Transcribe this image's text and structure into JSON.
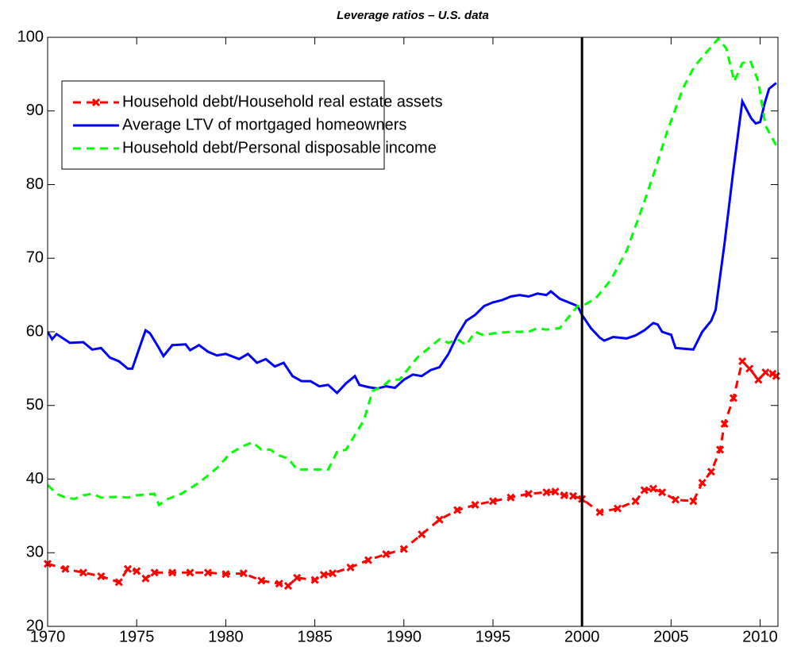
{
  "chart_data": {
    "type": "line",
    "title": "Leverage ratios – U.S. data",
    "xlim": [
      1970,
      2011
    ],
    "xticks": [
      1970,
      1975,
      1980,
      1985,
      1990,
      1995,
      2000,
      2005,
      2010
    ],
    "ylim": [
      20,
      100
    ],
    "yticks": [
      20,
      30,
      40,
      50,
      60,
      70,
      80,
      90,
      100
    ],
    "grid": false,
    "legend": "upper left",
    "vline": 2000,
    "series": [
      {
        "name": "Household debt/Household real estate assets",
        "color": "#ff0000",
        "style": "dashed",
        "marker": "x",
        "x": [
          1970,
          1971,
          1972,
          1973,
          1974,
          1974.5,
          1975,
          1975.5,
          1976,
          1977,
          1978,
          1979,
          1980,
          1981,
          1982,
          1983,
          1983.5,
          1984,
          1985,
          1985.5,
          1986,
          1987,
          1988,
          1989,
          1990,
          1991,
          1992,
          1993,
          1994,
          1995,
          1996,
          1997,
          1998,
          1998.5,
          1999,
          1999.5,
          2000,
          2001,
          2002,
          2003,
          2003.5,
          2004,
          2004.5,
          2005.25,
          2006.25,
          2006.75,
          2007.25,
          2007.75,
          2008,
          2008.5,
          2009,
          2009.4,
          2009.9,
          2010.3,
          2010.7,
          2010.9
        ],
        "values": [
          28.5,
          27.8,
          27.3,
          26.8,
          26,
          27.8,
          27.5,
          26.5,
          27.3,
          27.3,
          27.3,
          27.3,
          27.1,
          27.2,
          26.2,
          25.8,
          25.5,
          26.6,
          26.3,
          27,
          27.2,
          28,
          29,
          29.8,
          30.5,
          32.5,
          34.5,
          35.8,
          36.5,
          37,
          37.5,
          38,
          38.2,
          38.3,
          37.8,
          37.7,
          37.3,
          35.5,
          36,
          37,
          38.5,
          38.7,
          38.2,
          37.2,
          37,
          39.5,
          41,
          44,
          47.5,
          51,
          56,
          55,
          53.5,
          54.5,
          54.3,
          54
        ]
      },
      {
        "name": "Average LTV of mortgaged homeowners",
        "color": "#0000ff",
        "style": "solid",
        "x": [
          1970,
          1970.25,
          1970.5,
          1971.25,
          1972,
          1972.5,
          1973,
          1973.5,
          1974,
          1974.5,
          1974.75,
          1975.25,
          1975.5,
          1975.75,
          1976.25,
          1976.5,
          1977,
          1977.75,
          1978,
          1978.5,
          1979,
          1979.5,
          1980,
          1980.75,
          1981.25,
          1981.75,
          1982.25,
          1982.75,
          1983.25,
          1983.75,
          1984.25,
          1984.75,
          1985.25,
          1985.75,
          1986.25,
          1986.75,
          1987.25,
          1987.5,
          1988,
          1988.5,
          1989,
          1989.5,
          1990,
          1990.5,
          1991,
          1991.5,
          1992,
          1992.5,
          1993,
          1993.5,
          1994,
          1994.5,
          1995,
          1995.5,
          1996,
          1996.5,
          1997,
          1997.5,
          1998,
          1998.25,
          1998.75,
          1999.25,
          1999.75,
          2000,
          2000.5,
          2001,
          2001.25,
          2001.75,
          2002.5,
          2003,
          2003.5,
          2004,
          2004.25,
          2004.5,
          2005,
          2005.25,
          2006.25,
          2006.75,
          2007.25,
          2007.5,
          2008,
          2008.5,
          2009,
          2009.5,
          2009.75,
          2010,
          2010.25,
          2010.5,
          2010.9
        ],
        "values": [
          60,
          59,
          59.7,
          58.5,
          58.6,
          57.6,
          57.8,
          56.5,
          56,
          55,
          55,
          58.5,
          60.2,
          59.8,
          57.8,
          56.7,
          58.2,
          58.3,
          57.5,
          58.2,
          57.3,
          56.8,
          57,
          56.3,
          57,
          55.8,
          56.3,
          55.3,
          55.8,
          54,
          53.3,
          53.3,
          52.6,
          52.8,
          51.7,
          53,
          54,
          52.8,
          52.5,
          52.3,
          52.6,
          52.4,
          53.5,
          54.2,
          54,
          54.8,
          55.2,
          57,
          59.5,
          61.5,
          62.3,
          63.5,
          64,
          64.3,
          64.8,
          65,
          64.8,
          65.2,
          65,
          65.5,
          64.5,
          64,
          63.5,
          62.3,
          60.5,
          59.2,
          58.8,
          59.3,
          59.1,
          59.5,
          60.2,
          61.2,
          61,
          60,
          59.6,
          57.8,
          57.6,
          60,
          61.5,
          63,
          72,
          82,
          91.3,
          89,
          88.3,
          88.5,
          91,
          93,
          93.8
        ]
      },
      {
        "name": "Household debt/Personal disposable income",
        "color": "#00ff00",
        "style": "dashed",
        "x": [
          1970,
          1970.5,
          1971,
          1971.5,
          1972,
          1972.5,
          1973,
          1974,
          1974.5,
          1975,
          1976,
          1976.25,
          1976.75,
          1977.5,
          1978.5,
          1979.5,
          1980.25,
          1981,
          1981.5,
          1982,
          1982.5,
          1983,
          1983.5,
          1984,
          1985,
          1985.75,
          1986.25,
          1986.75,
          1987.25,
          1987.75,
          1988.25,
          1988.75,
          1989.25,
          1989.75,
          1990.25,
          1990.75,
          1991.5,
          1992,
          1992.5,
          1993,
          1993.5,
          1994,
          1994.5,
          1995,
          1996,
          1997,
          1997.5,
          1998,
          1998.75,
          1999.25,
          1999.75,
          2000,
          2000.75,
          2001.6,
          2002.5,
          2003.4,
          2004.1,
          2004.75,
          2005.2,
          2005.65,
          2006.3,
          2007,
          2007.65,
          2008.1,
          2008.55,
          2009,
          2009.45,
          2009.9,
          2010.3,
          2010.9
        ],
        "values": [
          39.2,
          38,
          37.5,
          37.3,
          37.8,
          38,
          37.5,
          37.6,
          37.5,
          37.8,
          38,
          36.5,
          37.3,
          38,
          39.5,
          41.5,
          43.5,
          44.5,
          45,
          44,
          44,
          43.2,
          42.8,
          41.3,
          41.3,
          41.3,
          43.7,
          44,
          46,
          48,
          52,
          52.5,
          53.5,
          53.5,
          55,
          56.5,
          58,
          59,
          58.5,
          59,
          58.2,
          60,
          59.5,
          59.8,
          60,
          60,
          60.5,
          60.3,
          60.5,
          62,
          63.5,
          63.5,
          64.5,
          67,
          71,
          77,
          82,
          87,
          90,
          93,
          96,
          98,
          99.8,
          98.5,
          94,
          96.5,
          96.8,
          94,
          88,
          85.3
        ]
      }
    ]
  }
}
